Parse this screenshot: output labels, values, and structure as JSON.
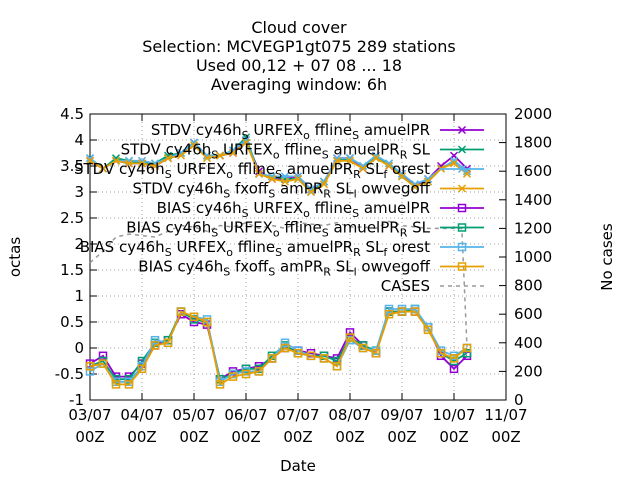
{
  "chart_data": {
    "type": "line",
    "title": [
      "Cloud cover",
      "Selection: MCVEGP1gt075    289 stations",
      "Used  00,12  + 07 08 ... 18",
      "Averaging window:  6h"
    ],
    "xlabel": "Date",
    "ylabel": "octas",
    "y2label": "No cases",
    "xlim": [
      0,
      8
    ],
    "ylim": [
      -1,
      4.5
    ],
    "y2lim": [
      0,
      2000
    ],
    "grid": "dotted, at major ticks",
    "legend_position": "top-right, inside",
    "x_ticks": [
      {
        "x": 0,
        "l1": "03/07",
        "l2": "00Z"
      },
      {
        "x": 1,
        "l1": "04/07",
        "l2": "00Z"
      },
      {
        "x": 2,
        "l1": "05/07",
        "l2": "00Z"
      },
      {
        "x": 3,
        "l1": "06/07",
        "l2": "00Z"
      },
      {
        "x": 4,
        "l1": "07/07",
        "l2": "00Z"
      },
      {
        "x": 5,
        "l1": "08/07",
        "l2": "00Z"
      },
      {
        "x": 6,
        "l1": "09/07",
        "l2": "00Z"
      },
      {
        "x": 7,
        "l1": "10/07",
        "l2": "00Z"
      },
      {
        "x": 8,
        "l1": "11/07",
        "l2": "00Z"
      }
    ],
    "y_ticks": [
      "-1",
      "-0.5",
      "0",
      "0.5",
      "1",
      "1.5",
      "2",
      "2.5",
      "3",
      "3.5",
      "4",
      "4.5"
    ],
    "y2_ticks": [
      "0",
      "200",
      "400",
      "600",
      "800",
      "1000",
      "1200",
      "1400",
      "1600",
      "1800",
      "2000"
    ],
    "x": [
      0,
      0.25,
      0.5,
      0.75,
      1,
      1.25,
      1.5,
      1.75,
      2,
      2.25,
      2.5,
      2.75,
      3,
      3.25,
      3.5,
      3.75,
      4,
      4.25,
      4.5,
      4.75,
      5,
      5.25,
      5.5,
      5.75,
      6,
      6.25,
      6.5,
      6.75,
      7,
      7.25
    ],
    "series": [
      {
        "name": "STDV cy46h_S URFEX_o ffline_S amuelPR",
        "color": "#9400d3",
        "marker": "x",
        "axis": "y",
        "values": [
          3.6,
          3.45,
          3.6,
          3.55,
          3.55,
          3.5,
          3.65,
          3.75,
          3.95,
          3.7,
          3.7,
          3.75,
          4.0,
          3.4,
          3.25,
          3.25,
          3.3,
          3.05,
          3.2,
          3.65,
          3.65,
          3.45,
          3.7,
          3.5,
          3.35,
          3.1,
          3.25,
          3.5,
          3.7,
          3.45
        ]
      },
      {
        "name": "STDV cy46h_S URFEX_o ffline_S amuelPR_R SL",
        "color": "#009e73",
        "marker": "x",
        "axis": "y",
        "values": [
          3.65,
          3.45,
          3.65,
          3.6,
          3.55,
          3.55,
          3.7,
          3.75,
          3.95,
          3.7,
          3.7,
          3.8,
          4.05,
          3.35,
          3.3,
          3.25,
          3.25,
          3.0,
          3.2,
          3.6,
          3.65,
          3.5,
          3.65,
          3.55,
          3.3,
          3.1,
          3.2,
          3.45,
          3.6,
          3.4
        ]
      },
      {
        "name": "STDV cy46h_S URFEX_o ffline_S amuelPR_R SL_f orest",
        "color": "#56b4e9",
        "marker": "x",
        "axis": "y",
        "values": [
          3.65,
          3.45,
          3.6,
          3.6,
          3.6,
          3.55,
          3.65,
          3.75,
          3.95,
          3.7,
          3.7,
          3.8,
          4.0,
          3.35,
          3.3,
          3.3,
          3.3,
          3.05,
          3.2,
          3.65,
          3.65,
          3.5,
          3.7,
          3.55,
          3.35,
          3.15,
          3.25,
          3.45,
          3.6,
          3.4
        ]
      },
      {
        "name": "STDV cy46h_S fxoff_S amPR_R SL_l owvegoff",
        "color": "#e69f00",
        "marker": "x",
        "axis": "y",
        "values": [
          3.6,
          3.45,
          3.6,
          3.55,
          3.55,
          3.5,
          3.65,
          3.7,
          3.9,
          3.65,
          3.7,
          3.75,
          3.95,
          3.35,
          3.25,
          3.2,
          3.25,
          3.0,
          3.15,
          3.6,
          3.6,
          3.45,
          3.65,
          3.5,
          3.3,
          3.1,
          3.2,
          3.45,
          3.55,
          3.35
        ]
      },
      {
        "name": "BIAS cy46h_S URFEX_o ffline_S amuelPR",
        "color": "#9400d3",
        "marker": "square",
        "axis": "y",
        "values": [
          -0.3,
          -0.15,
          -0.55,
          -0.55,
          -0.3,
          0.05,
          0.15,
          0.65,
          0.5,
          0.45,
          -0.6,
          -0.45,
          -0.4,
          -0.35,
          -0.2,
          0.0,
          -0.05,
          -0.1,
          -0.15,
          -0.2,
          0.3,
          0.05,
          -0.1,
          0.7,
          0.7,
          0.7,
          0.4,
          -0.15,
          -0.4,
          -0.15
        ]
      },
      {
        "name": "BIAS cy46h_S URFEX_o ffline_S amuelPR_R SL",
        "color": "#009e73",
        "marker": "square",
        "axis": "y",
        "values": [
          -0.35,
          -0.25,
          -0.6,
          -0.6,
          -0.25,
          0.1,
          0.15,
          0.7,
          0.55,
          0.5,
          -0.6,
          -0.5,
          -0.4,
          -0.4,
          -0.15,
          0.05,
          -0.1,
          -0.15,
          -0.15,
          -0.25,
          0.2,
          0.05,
          -0.05,
          0.7,
          0.7,
          0.75,
          0.4,
          -0.1,
          -0.25,
          -0.1
        ]
      },
      {
        "name": "BIAS cy46h_S URFEX_o ffline_S amuelPR_R SL_f orest",
        "color": "#56b4e9",
        "marker": "square",
        "axis": "y",
        "values": [
          -0.45,
          -0.3,
          -0.65,
          -0.65,
          -0.35,
          0.15,
          0.1,
          0.7,
          0.6,
          0.55,
          -0.65,
          -0.5,
          -0.45,
          -0.45,
          -0.2,
          0.1,
          -0.05,
          -0.15,
          -0.2,
          -0.35,
          0.15,
          0.0,
          -0.05,
          0.75,
          0.75,
          0.75,
          0.4,
          -0.05,
          -0.15,
          0.0
        ]
      },
      {
        "name": "BIAS cy46h_S fxoff_S amPR_R SL_l owvegoff",
        "color": "#e69f00",
        "marker": "square",
        "axis": "y",
        "values": [
          -0.35,
          -0.3,
          -0.7,
          -0.7,
          -0.4,
          0.05,
          0.1,
          0.7,
          0.6,
          0.5,
          -0.7,
          -0.55,
          -0.5,
          -0.45,
          -0.2,
          0.0,
          -0.1,
          -0.15,
          -0.2,
          -0.35,
          0.2,
          0.0,
          -0.1,
          0.65,
          0.7,
          0.7,
          0.35,
          -0.1,
          -0.2,
          0.0
        ]
      },
      {
        "name": "CASES",
        "color": "#999999",
        "marker": "none",
        "dash": true,
        "axis": "y2",
        "x": [
          0,
          0.25,
          0.5,
          0.75,
          1,
          1.25,
          1.5,
          1.75,
          2,
          2.25,
          2.5,
          2.75,
          3,
          3.25,
          3.5,
          3.75,
          4,
          4.25,
          4.5,
          4.75,
          5,
          5.25,
          5.5,
          5.75,
          6,
          6.25,
          6.5,
          6.75,
          7,
          7.15,
          7.2,
          7.25
        ],
        "values": [
          960,
          1040,
          1140,
          1160,
          1150,
          1140,
          1180,
          1220,
          1210,
          1180,
          1220,
          1210,
          1240,
          1200,
          1220,
          1200,
          1240,
          1230,
          1220,
          1240,
          1210,
          1210,
          1200,
          1250,
          1220,
          1210,
          1200,
          1200,
          1200,
          1200,
          790,
          370
        ]
      }
    ]
  }
}
